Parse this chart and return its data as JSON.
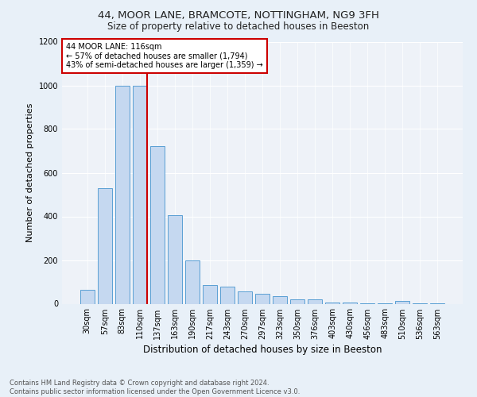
{
  "title": "44, MOOR LANE, BRAMCOTE, NOTTINGHAM, NG9 3FH",
  "subtitle": "Size of property relative to detached houses in Beeston",
  "xlabel": "Distribution of detached houses by size in Beeston",
  "ylabel": "Number of detached properties",
  "categories": [
    "30sqm",
    "57sqm",
    "83sqm",
    "110sqm",
    "137sqm",
    "163sqm",
    "190sqm",
    "217sqm",
    "243sqm",
    "270sqm",
    "297sqm",
    "323sqm",
    "350sqm",
    "376sqm",
    "403sqm",
    "430sqm",
    "456sqm",
    "483sqm",
    "510sqm",
    "536sqm",
    "563sqm"
  ],
  "values": [
    65,
    530,
    1000,
    1000,
    720,
    405,
    200,
    85,
    80,
    55,
    45,
    33,
    20,
    20,
    5,
    5,
    3,
    3,
    12,
    3,
    3
  ],
  "bar_color": "#c5d8f0",
  "bar_edge_color": "#5a9fd4",
  "marker_index": 3,
  "marker_label": "44 MOOR LANE: 116sqm",
  "annotation_line1": "← 57% of detached houses are smaller (1,794)",
  "annotation_line2": "43% of semi-detached houses are larger (1,359) →",
  "marker_color": "#cc0000",
  "annotation_box_edge": "#cc0000",
  "ylim": [
    0,
    1200
  ],
  "yticks": [
    0,
    200,
    400,
    600,
    800,
    1000,
    1200
  ],
  "footer_line1": "Contains HM Land Registry data © Crown copyright and database right 2024.",
  "footer_line2": "Contains public sector information licensed under the Open Government Licence v3.0.",
  "bg_color": "#e8f0f8",
  "plot_bg_color": "#eef2f8",
  "title_fontsize": 9.5,
  "subtitle_fontsize": 8.5,
  "ylabel_fontsize": 8,
  "xlabel_fontsize": 8.5,
  "tick_fontsize": 7,
  "annotation_fontsize": 7,
  "footer_fontsize": 6
}
